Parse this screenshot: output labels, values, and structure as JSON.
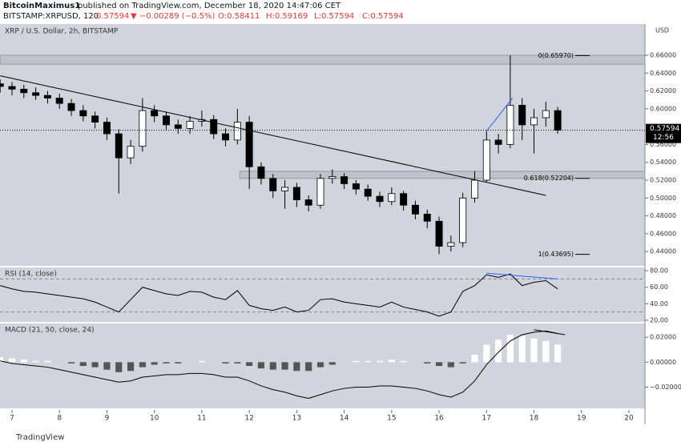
{
  "header": {
    "publisher": "BitcoinMaximus1",
    "published": "published on TradingView.com, December 18, 2020 14:47:06 CET",
    "symbol": "BITSTAMP:XRPUSD, 120",
    "last": "0.57594",
    "change": "▼ −0.00289 (−0.5%)",
    "open": "O:0.58411",
    "high": "H:0.59169",
    "low": "L:0.57594",
    "close": "C:0.57594"
  },
  "footer": {
    "brand": "TradingView"
  },
  "chart_data": {
    "type": "candlestick",
    "title": "XRP / U.S. Dollar, 2h, BITSTAMP",
    "y_unit": "USD",
    "up_color": "#ffffff",
    "down_color": "#000000",
    "background": "#d1d4dc",
    "xlim": [
      6.747,
      20.338
    ],
    "xticks": [
      7,
      8,
      9,
      10,
      11,
      12,
      13,
      14,
      15,
      16,
      17,
      18,
      19,
      20
    ],
    "ylim": [
      0.424,
      0.695
    ],
    "yticks": [
      {
        "value": 0.44,
        "label": "0.44000"
      },
      {
        "value": 0.46,
        "label": "0.46000"
      },
      {
        "value": 0.48,
        "label": "0.48000"
      },
      {
        "value": 0.5,
        "label": "0.50000"
      },
      {
        "value": 0.52,
        "label": "0.52000"
      },
      {
        "value": 0.54,
        "label": "0.54000"
      },
      {
        "value": 0.56,
        "label": "0.56000"
      },
      {
        "value": 0.6,
        "label": "0.60000"
      },
      {
        "value": 0.62,
        "label": "0.62000"
      },
      {
        "value": 0.64,
        "label": "0.64000"
      },
      {
        "value": 0.66,
        "label": "0.66000"
      }
    ],
    "last_price": {
      "value": 0.57594,
      "label": "0.57594",
      "countdown": "12:56"
    },
    "x": [
      6.75,
      7,
      7.25,
      7.5,
      7.75,
      8,
      8.25,
      8.5,
      8.75,
      9,
      9.25,
      9.5,
      9.75,
      10,
      10.25,
      10.5,
      10.75,
      11,
      11.25,
      11.5,
      11.75,
      12,
      12.25,
      12.5,
      12.75,
      13,
      13.25,
      13.5,
      13.75,
      14,
      14.25,
      14.5,
      14.75,
      15,
      15.25,
      15.5,
      15.75,
      16,
      16.25,
      16.5,
      16.75,
      17,
      17.25,
      17.5,
      17.75,
      18,
      18.25,
      18.5
    ],
    "open": [
      0.628,
      0.625,
      0.622,
      0.618,
      0.615,
      0.612,
      0.606,
      0.598,
      0.592,
      0.585,
      0.572,
      0.545,
      0.558,
      0.598,
      0.592,
      0.582,
      0.578,
      0.586,
      0.588,
      0.572,
      0.565,
      0.585,
      0.535,
      0.522,
      0.508,
      0.512,
      0.498,
      0.492,
      0.522,
      0.524,
      0.516,
      0.51,
      0.502,
      0.496,
      0.505,
      0.492,
      0.482,
      0.474,
      0.446,
      0.45,
      0.5,
      0.52,
      0.565,
      0.56,
      0.604,
      0.582,
      0.59,
      0.598
    ],
    "high": [
      0.633,
      0.63,
      0.627,
      0.624,
      0.62,
      0.617,
      0.611,
      0.604,
      0.597,
      0.59,
      0.577,
      0.565,
      0.612,
      0.604,
      0.597,
      0.588,
      0.592,
      0.598,
      0.593,
      0.578,
      0.6,
      0.592,
      0.54,
      0.527,
      0.52,
      0.517,
      0.503,
      0.527,
      0.532,
      0.528,
      0.52,
      0.515,
      0.507,
      0.512,
      0.508,
      0.497,
      0.487,
      0.479,
      0.458,
      0.506,
      0.53,
      0.575,
      0.572,
      0.66,
      0.612,
      0.6,
      0.608,
      0.602
    ],
    "low": [
      0.618,
      0.615,
      0.612,
      0.61,
      0.606,
      0.6,
      0.592,
      0.586,
      0.578,
      0.565,
      0.505,
      0.538,
      0.552,
      0.585,
      0.576,
      0.572,
      0.572,
      0.58,
      0.566,
      0.558,
      0.56,
      0.51,
      0.515,
      0.5,
      0.488,
      0.49,
      0.485,
      0.488,
      0.516,
      0.51,
      0.504,
      0.497,
      0.49,
      0.492,
      0.486,
      0.476,
      0.466,
      0.437,
      0.44,
      0.445,
      0.495,
      0.518,
      0.55,
      0.556,
      0.565,
      0.55,
      0.58,
      0.572
    ],
    "close": [
      0.625,
      0.622,
      0.618,
      0.615,
      0.612,
      0.606,
      0.598,
      0.592,
      0.585,
      0.572,
      0.545,
      0.558,
      0.598,
      0.592,
      0.582,
      0.578,
      0.586,
      0.588,
      0.572,
      0.565,
      0.585,
      0.535,
      0.522,
      0.508,
      0.512,
      0.498,
      0.492,
      0.522,
      0.524,
      0.516,
      0.51,
      0.502,
      0.496,
      0.505,
      0.492,
      0.482,
      0.474,
      0.446,
      0.45,
      0.5,
      0.52,
      0.565,
      0.56,
      0.604,
      0.582,
      0.59,
      0.598,
      0.576
    ],
    "zones": [
      {
        "from": 0.65,
        "to": 0.66
      },
      {
        "from": 0.522,
        "to": 0.53
      }
    ],
    "fib_levels": [
      {
        "value": 0.6597,
        "label": "0(0.65970)"
      },
      {
        "value": 0.52204,
        "label": "0.618(0.52204)"
      },
      {
        "value": 0.43695,
        "label": "1(0.43695)"
      }
    ],
    "lines": [
      {
        "x": [
          6.75,
          18.25
        ],
        "y": [
          0.637,
          0.503
        ],
        "color": "#000000"
      },
      {
        "x": [
          17,
          17.55
        ],
        "y": [
          0.575,
          0.612
        ],
        "color": "#2962ff"
      }
    ],
    "rsi": {
      "title": "RSI (14, close)",
      "color": "#000000",
      "ylim": [
        18,
        84
      ],
      "yticks": [
        {
          "value": 20,
          "label": "20.00"
        },
        {
          "value": 40,
          "label": "40.00"
        },
        {
          "value": 60,
          "label": "60.00"
        },
        {
          "value": 80,
          "label": "80.00"
        }
      ],
      "bands": [
        30,
        70
      ],
      "values": [
        62,
        58,
        55,
        54,
        52,
        50,
        48,
        46,
        42,
        36,
        30,
        45,
        60,
        56,
        52,
        50,
        55,
        54,
        48,
        45,
        56,
        38,
        34,
        32,
        36,
        30,
        32,
        45,
        46,
        42,
        40,
        38,
        36,
        42,
        36,
        33,
        30,
        25,
        30,
        55,
        62,
        75,
        72,
        76,
        62,
        66,
        68,
        58
      ],
      "lines": [
        {
          "x": [
            17,
            18.5
          ],
          "y": [
            77,
            70
          ],
          "color": "#2962ff"
        }
      ]
    },
    "macd": {
      "title": "MACD (21, 50, close, 24)",
      "color": "#000000",
      "pos_color": "#ffffff",
      "neg_color": "#555555",
      "ylim": [
        -0.037,
        0.031
      ],
      "yticks": [
        {
          "value": -0.02,
          "label": "−0.02000"
        },
        {
          "value": 0,
          "label": "0.00000"
        },
        {
          "value": 0.02,
          "label": "0.02000"
        }
      ],
      "values": [
        0.001,
        -0.001,
        -0.002,
        -0.003,
        -0.004,
        -0.006,
        -0.008,
        -0.01,
        -0.012,
        -0.014,
        -0.016,
        -0.015,
        -0.012,
        -0.011,
        -0.01,
        -0.01,
        -0.009,
        -0.009,
        -0.01,
        -0.012,
        -0.012,
        -0.015,
        -0.019,
        -0.022,
        -0.024,
        -0.027,
        -0.029,
        -0.026,
        -0.023,
        -0.021,
        -0.02,
        -0.02,
        -0.019,
        -0.019,
        -0.02,
        -0.021,
        -0.023,
        -0.026,
        -0.028,
        -0.024,
        -0.015,
        -0.002,
        0.008,
        0.017,
        0.022,
        0.024,
        0.025,
        0.023
      ],
      "histogram": [
        0.004,
        0.003,
        0.002,
        0.001,
        0.001,
        0,
        -0.001,
        -0.003,
        -0.004,
        -0.006,
        -0.008,
        -0.007,
        -0.004,
        -0.002,
        -0.001,
        -0.001,
        0,
        0.001,
        0,
        -0.001,
        -0.001,
        -0.003,
        -0.005,
        -0.006,
        -0.006,
        -0.007,
        -0.007,
        -0.004,
        -0.002,
        0,
        0.001,
        0.001,
        0.001,
        0.002,
        0.001,
        0,
        -0.001,
        -0.003,
        -0.004,
        -0.001,
        0.006,
        0.014,
        0.018,
        0.022,
        0.021,
        0.019,
        0.017,
        0.014
      ],
      "lines": [
        {
          "x": [
            18.0,
            18.65
          ],
          "y": [
            0.026,
            0.022
          ],
          "color": "#000000"
        }
      ]
    }
  }
}
